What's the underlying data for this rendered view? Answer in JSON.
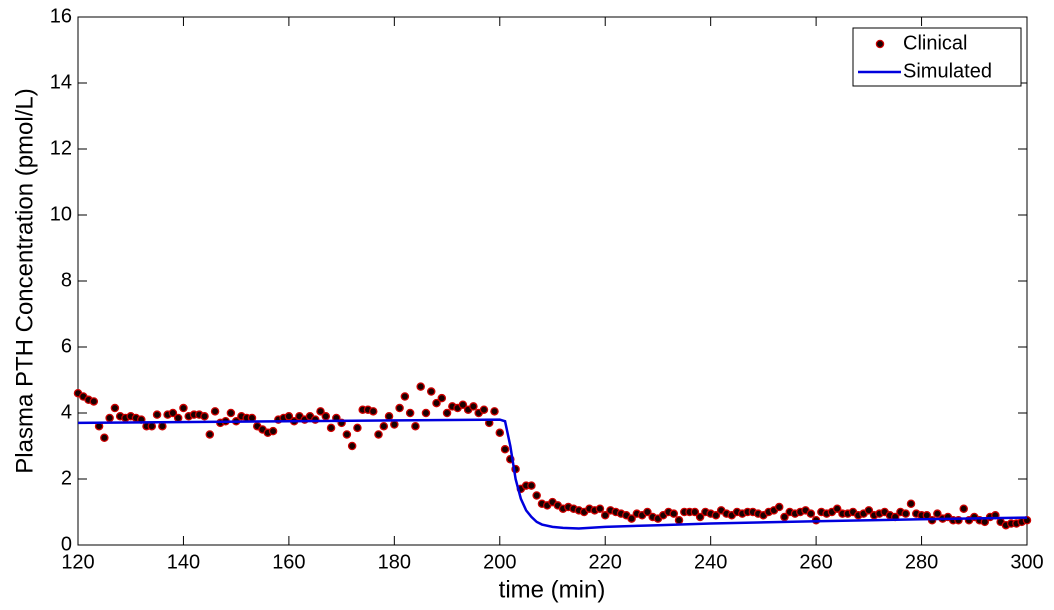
{
  "chart_data": {
    "type": "scatter",
    "xlabel": "time (min)",
    "ylabel": "Plasma PTH Concentration (pmol/L)",
    "xlim": [
      120,
      300
    ],
    "ylim": [
      0,
      16
    ],
    "xticks": [
      120,
      140,
      160,
      180,
      200,
      220,
      240,
      260,
      280,
      300
    ],
    "yticks": [
      0,
      2,
      4,
      6,
      8,
      10,
      12,
      14,
      16
    ],
    "grid": false,
    "legend": "northeast",
    "series": [
      {
        "name": "Clinical",
        "type": "scatter",
        "color": "#1a0000",
        "edgecolor": "#cc0000",
        "x": [
          120,
          121,
          122,
          123,
          124,
          125,
          126,
          127,
          128,
          129,
          130,
          131,
          132,
          133,
          134,
          135,
          136,
          137,
          138,
          139,
          140,
          141,
          142,
          143,
          144,
          145,
          146,
          147,
          148,
          149,
          150,
          151,
          152,
          153,
          154,
          155,
          156,
          157,
          158,
          159,
          160,
          161,
          162,
          163,
          164,
          165,
          166,
          167,
          168,
          169,
          170,
          171,
          172,
          173,
          174,
          175,
          176,
          177,
          178,
          179,
          180,
          181,
          182,
          183,
          184,
          185,
          186,
          187,
          188,
          189,
          190,
          191,
          192,
          193,
          194,
          195,
          196,
          197,
          198,
          199,
          200,
          201,
          202,
          203,
          204,
          205,
          206,
          207,
          208,
          209,
          210,
          211,
          212,
          213,
          214,
          215,
          216,
          217,
          218,
          219,
          220,
          221,
          222,
          223,
          224,
          225,
          226,
          227,
          228,
          229,
          230,
          231,
          232,
          233,
          234,
          235,
          236,
          237,
          238,
          239,
          240,
          241,
          242,
          243,
          244,
          245,
          246,
          247,
          248,
          249,
          250,
          251,
          252,
          253,
          254,
          255,
          256,
          257,
          258,
          259,
          260,
          261,
          262,
          263,
          264,
          265,
          266,
          267,
          268,
          269,
          270,
          271,
          272,
          273,
          274,
          275,
          276,
          277,
          278,
          279,
          280,
          281,
          282,
          283,
          284,
          285,
          286,
          287,
          288,
          289,
          290,
          291,
          292,
          293,
          294,
          295,
          296,
          297,
          298,
          299,
          300
        ],
        "values": [
          4.6,
          4.5,
          4.4,
          4.35,
          3.6,
          3.25,
          3.85,
          4.15,
          3.9,
          3.85,
          3.9,
          3.85,
          3.8,
          3.6,
          3.6,
          3.95,
          3.6,
          3.95,
          4.0,
          3.85,
          4.15,
          3.9,
          3.95,
          3.95,
          3.9,
          3.35,
          4.05,
          3.7,
          3.75,
          4.0,
          3.75,
          3.9,
          3.85,
          3.85,
          3.6,
          3.5,
          3.4,
          3.45,
          3.8,
          3.85,
          3.9,
          3.75,
          3.9,
          3.8,
          3.9,
          3.8,
          4.05,
          3.9,
          3.55,
          3.85,
          3.7,
          3.35,
          3.0,
          3.55,
          4.1,
          4.1,
          4.05,
          3.35,
          3.6,
          3.9,
          3.65,
          4.15,
          4.5,
          4.0,
          3.6,
          4.8,
          4.0,
          4.65,
          4.3,
          4.45,
          4.0,
          4.2,
          4.15,
          4.25,
          4.1,
          4.2,
          4.0,
          4.1,
          3.7,
          4.05,
          3.4,
          2.9,
          2.6,
          2.3,
          1.7,
          1.8,
          1.8,
          1.5,
          1.25,
          1.2,
          1.3,
          1.2,
          1.1,
          1.15,
          1.1,
          1.05,
          1.0,
          1.1,
          1.05,
          1.1,
          0.9,
          1.05,
          1.0,
          0.95,
          0.9,
          0.8,
          0.95,
          0.9,
          1.0,
          0.85,
          0.8,
          0.9,
          1.0,
          0.95,
          0.75,
          1.0,
          1.0,
          1.0,
          0.85,
          1.0,
          0.95,
          0.9,
          1.05,
          0.95,
          0.9,
          1.0,
          0.95,
          1.0,
          1.0,
          0.95,
          0.9,
          1.0,
          1.05,
          1.15,
          0.85,
          1.0,
          0.95,
          1.0,
          1.05,
          0.95,
          0.75,
          1.0,
          0.95,
          1.0,
          1.1,
          0.95,
          0.95,
          1.0,
          0.9,
          0.95,
          1.05,
          0.9,
          0.95,
          1.0,
          0.9,
          0.85,
          1.0,
          0.95,
          1.25,
          0.95,
          0.9,
          0.9,
          0.75,
          0.95,
          0.8,
          0.85,
          0.75,
          0.75,
          1.1,
          0.75,
          0.85,
          0.75,
          0.7,
          0.85,
          0.9,
          0.7,
          0.6,
          0.65,
          0.65,
          0.7,
          0.75
        ]
      },
      {
        "name": "Simulated",
        "type": "line",
        "color": "#0000dd",
        "x": [
          120,
          160,
          200,
          201,
          202,
          203,
          204,
          205,
          206,
          207,
          208,
          210,
          212,
          215,
          220,
          230,
          240,
          260,
          280,
          300
        ],
        "values": [
          3.7,
          3.75,
          3.8,
          3.75,
          3.0,
          2.0,
          1.4,
          1.05,
          0.85,
          0.7,
          0.62,
          0.55,
          0.52,
          0.5,
          0.55,
          0.6,
          0.65,
          0.72,
          0.78,
          0.83
        ]
      }
    ]
  }
}
